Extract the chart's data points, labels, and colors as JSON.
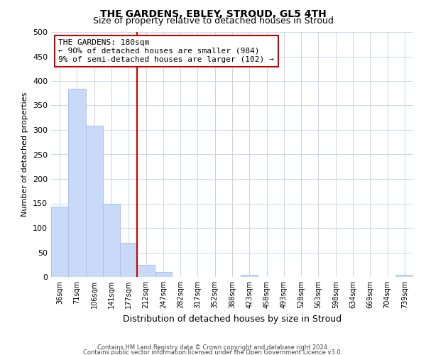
{
  "title": "THE GARDENS, EBLEY, STROUD, GL5 4TH",
  "subtitle": "Size of property relative to detached houses in Stroud",
  "xlabel": "Distribution of detached houses by size in Stroud",
  "ylabel": "Number of detached properties",
  "bin_labels": [
    "36sqm",
    "71sqm",
    "106sqm",
    "141sqm",
    "177sqm",
    "212sqm",
    "247sqm",
    "282sqm",
    "317sqm",
    "352sqm",
    "388sqm",
    "423sqm",
    "458sqm",
    "493sqm",
    "528sqm",
    "563sqm",
    "598sqm",
    "634sqm",
    "669sqm",
    "704sqm",
    "739sqm"
  ],
  "bar_heights": [
    144,
    384,
    308,
    150,
    70,
    25,
    10,
    0,
    0,
    0,
    0,
    5,
    0,
    0,
    0,
    0,
    0,
    0,
    0,
    0,
    5
  ],
  "bar_color": "#c9daf8",
  "bar_edge_color": "#a4c2f4",
  "vline_color": "#cc0000",
  "vline_pos": 4.5,
  "annotation_title": "THE GARDENS: 180sqm",
  "annotation_line1": "← 90% of detached houses are smaller (984)",
  "annotation_line2": "9% of semi-detached houses are larger (102) →",
  "annotation_box_color": "#ffffff",
  "annotation_box_edge": "#cc0000",
  "ylim": [
    0,
    500
  ],
  "yticks": [
    0,
    50,
    100,
    150,
    200,
    250,
    300,
    350,
    400,
    450,
    500
  ],
  "footer1": "Contains HM Land Registry data © Crown copyright and database right 2024.",
  "footer2": "Contains public sector information licensed under the Open Government Licence v3.0.",
  "background_color": "#ffffff",
  "grid_color": "#c8d4e8",
  "title_fontsize": 10,
  "subtitle_fontsize": 9,
  "annot_fontsize": 8,
  "ylabel_fontsize": 8,
  "xlabel_fontsize": 9
}
